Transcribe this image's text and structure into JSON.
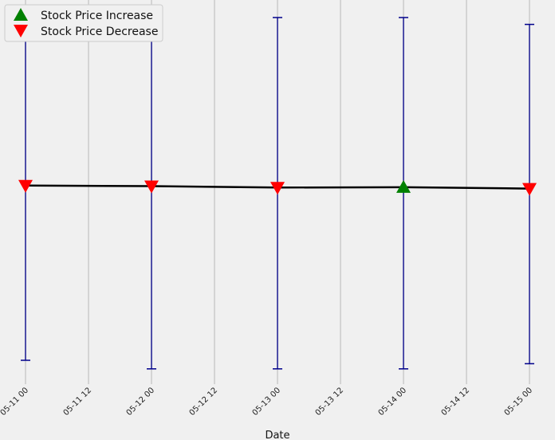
{
  "chart_data": {
    "type": "line",
    "title": "",
    "xlabel": "Date",
    "ylabel": "",
    "x": [
      "05-11 00",
      "05-12 00",
      "05-13 00",
      "05-14 00",
      "05-15 00"
    ],
    "x_ticks": [
      "05-11 00",
      "05-11 12",
      "05-12 00",
      "05-12 12",
      "05-13 00",
      "05-13 12",
      "05-14 00",
      "05-14 12",
      "05-15 00"
    ],
    "ylim": [
      0,
      100
    ],
    "grid": "x",
    "legend_position": "top-left",
    "series": [
      {
        "values": [
          51.0,
          50.8,
          50.4,
          50.5,
          50.1
        ],
        "color": "#000000"
      }
    ],
    "error_bars": {
      "color": "#00008b",
      "low": [
        0.0,
        -2.5,
        -2.5,
        -2.5,
        -1.0
      ],
      "high": [
        101.5,
        101.5,
        100.0,
        100.0,
        98.0
      ]
    },
    "markers": [
      {
        "x": "05-11 00",
        "value": 51.0,
        "kind": "decrease"
      },
      {
        "x": "05-12 00",
        "value": 50.8,
        "kind": "decrease"
      },
      {
        "x": "05-13 00",
        "value": 50.4,
        "kind": "decrease"
      },
      {
        "x": "05-14 00",
        "value": 50.5,
        "kind": "increase"
      },
      {
        "x": "05-15 00",
        "value": 50.1,
        "kind": "decrease"
      }
    ],
    "legend": [
      {
        "label": "Stock Price Increase",
        "kind": "increase",
        "color": "#008000"
      },
      {
        "label": "Stock Price Decrease",
        "kind": "decrease",
        "color": "#ff0000"
      }
    ]
  }
}
